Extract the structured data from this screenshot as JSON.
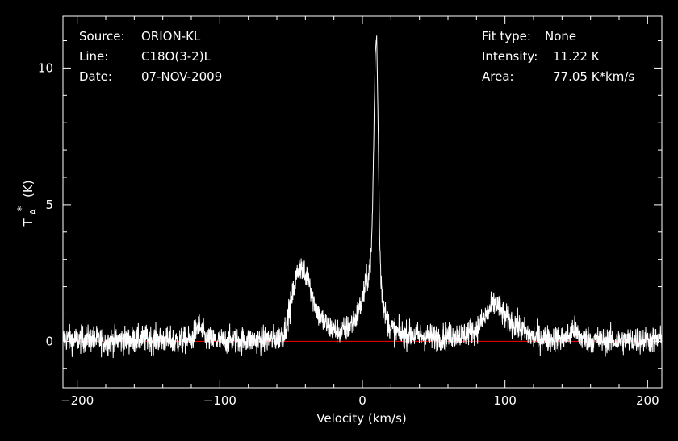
{
  "chart_data": {
    "type": "line",
    "title": "",
    "xlabel": "Velocity (km/s)",
    "ylabel": "T",
    "ylabel_sub": "A",
    "ylabel_sup": "*",
    "ylabel_unit": "(K)",
    "xlim": [
      -210,
      210
    ],
    "ylim": [
      -1.7,
      11.9
    ],
    "xticks": [
      -200,
      -100,
      0,
      100,
      200
    ],
    "xtick_labels": [
      "−200",
      "−100",
      "0",
      "100",
      "200"
    ],
    "yticks": [
      0,
      5,
      10
    ],
    "ytick_labels": [
      "0",
      "5",
      "10"
    ],
    "baseline": 0,
    "colors": {
      "background": "#000000",
      "spectrum": "#ffffff",
      "baseline": "#ff0000",
      "axes": "#ffffff"
    },
    "info_left": [
      {
        "key": "Source:",
        "value": "ORION-KL"
      },
      {
        "key": "Line:",
        "value": "C18O(3-2)L"
      },
      {
        "key": "Date:",
        "value": "07-NOV-2009"
      }
    ],
    "info_right": [
      {
        "key": "Fit type:",
        "value": "None"
      },
      {
        "key": "Intensity:",
        "value": "11.22 K"
      },
      {
        "key": "Area:",
        "value": "77.05 K*km/s"
      }
    ],
    "series": [
      {
        "x": [
          -210,
          -200,
          -190,
          -180,
          -170,
          -160,
          -150,
          -140,
          -130,
          -120,
          -115,
          -110,
          -100,
          -90,
          -80,
          -70,
          -60,
          -55,
          -50,
          -47,
          -44,
          -42,
          -40,
          -38,
          -35,
          -30,
          -25,
          -20,
          -15,
          -10,
          -5,
          -2,
          0,
          2,
          4,
          5,
          6,
          7,
          8,
          9,
          10,
          11,
          12,
          13,
          14,
          15,
          17,
          20,
          25,
          30,
          40,
          50,
          60,
          70,
          80,
          85,
          90,
          93,
          95,
          100,
          105,
          110,
          115,
          120,
          130,
          140,
          145,
          148,
          150,
          155,
          160,
          170,
          180,
          190,
          200,
          210
        ],
        "values": [
          0.1,
          0.05,
          0.1,
          0.0,
          0.05,
          0.05,
          0.1,
          0.05,
          0.0,
          0.05,
          0.6,
          0.1,
          0.0,
          0.05,
          0.05,
          0.05,
          0.1,
          0.3,
          1.4,
          2.2,
          2.8,
          2.6,
          2.3,
          2.5,
          1.6,
          0.9,
          0.6,
          0.4,
          0.35,
          0.5,
          0.8,
          1.2,
          1.5,
          2.0,
          2.4,
          2.7,
          3.0,
          4.5,
          7.5,
          10.5,
          11.22,
          8.0,
          4.0,
          2.4,
          1.6,
          1.2,
          0.8,
          0.5,
          0.3,
          0.25,
          0.2,
          0.15,
          0.2,
          0.25,
          0.45,
          0.8,
          1.2,
          1.4,
          1.3,
          0.9,
          0.7,
          0.5,
          0.3,
          0.15,
          0.1,
          0.1,
          0.2,
          0.5,
          0.3,
          0.1,
          0.05,
          0.05,
          0.0,
          0.05,
          0.05,
          0.05
        ],
        "noise_rms": 0.35
      }
    ]
  }
}
